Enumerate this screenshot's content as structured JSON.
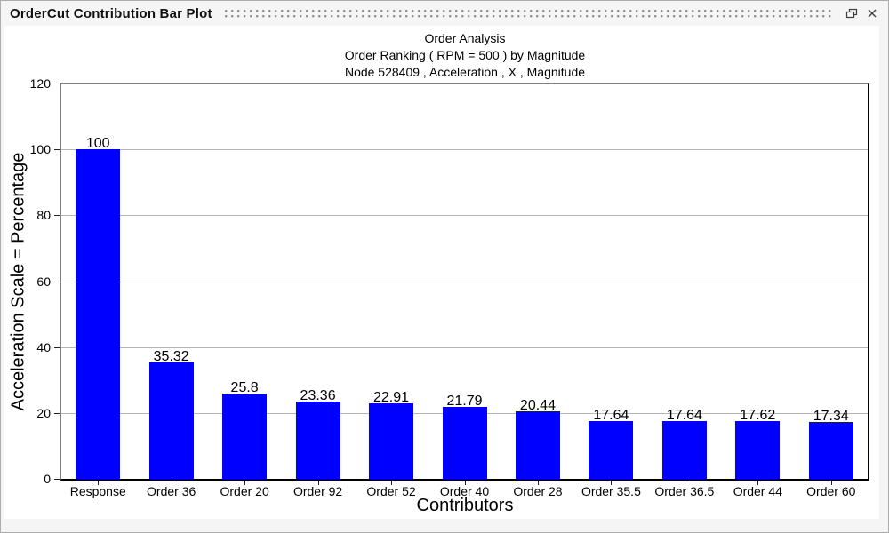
{
  "window": {
    "title": "OrderCut Contribution Bar Plot",
    "icons": {
      "float": "float-pane-icon",
      "close": "close-icon"
    }
  },
  "chart_data": {
    "type": "bar",
    "title_lines": [
      "Order Analysis",
      "Order Ranking ( RPM = 500 ) by Magnitude",
      "Node 528409 , Acceleration , X , Magnitude"
    ],
    "categories": [
      "Response",
      "Order 36",
      "Order 20",
      "Order 92",
      "Order 52",
      "Order 40",
      "Order 28",
      "Order 35.5",
      "Order 36.5",
      "Order 44",
      "Order 60"
    ],
    "values": [
      100,
      35.32,
      25.8,
      23.36,
      22.91,
      21.79,
      20.44,
      17.64,
      17.64,
      17.62,
      17.34
    ],
    "value_labels": [
      "100",
      "35.32",
      "25.8",
      "23.36",
      "22.91",
      "21.79",
      "20.44",
      "17.64",
      "17.64",
      "17.62",
      "17.34"
    ],
    "xlabel": "Contributors",
    "ylabel": "Acceleration Scale = Percentage",
    "ylim": [
      0,
      120
    ],
    "yticks": [
      0,
      20,
      40,
      60,
      80,
      100,
      120
    ],
    "grid": true,
    "legend": "none",
    "bar_color": "#0000ff",
    "gridline_color": "#b5b5b5"
  }
}
